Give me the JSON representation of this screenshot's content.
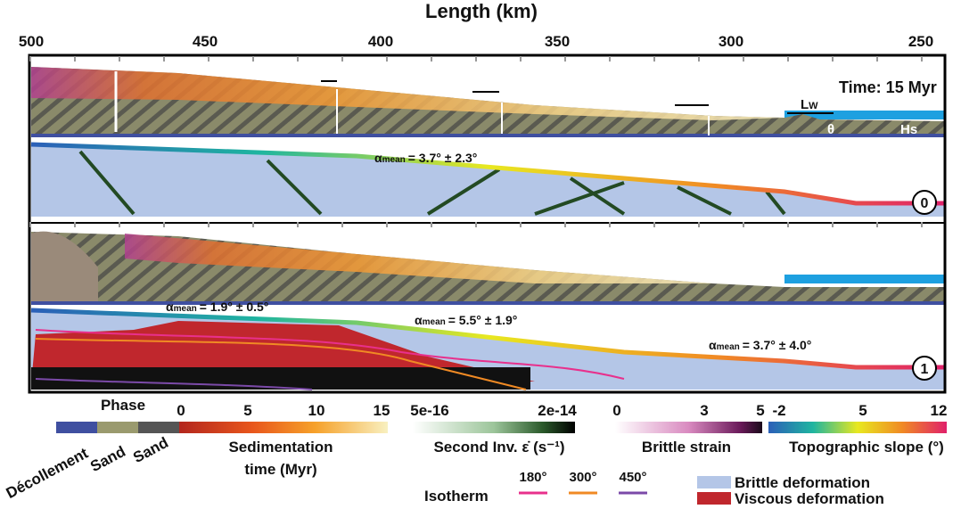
{
  "header": {
    "title": "Length (km)",
    "ticks": [
      500,
      450,
      400,
      350,
      300,
      250
    ]
  },
  "panel_0": {
    "time": "Time: 15 Myr",
    "wave_length": {
      "main": "L",
      "sub": "W"
    },
    "angle": "θ",
    "height": "Hs",
    "slope": {
      "symbol": "α",
      "subscript": "mean",
      "text": "= 3.7° ± 2.3°"
    },
    "label": "0"
  },
  "panel_1": {
    "slopes": [
      {
        "symbol": "α",
        "subscript": "mean",
        "text": "= 1.9° ± 0.5°"
      },
      {
        "symbol": "α",
        "subscript": "mean",
        "text": "= 5.5° ± 1.9°"
      },
      {
        "symbol": "α",
        "subscript": "mean",
        "text": "= 3.7° ± 4.0°"
      }
    ],
    "label": "1"
  },
  "legend": {
    "phase": {
      "title": "Phase",
      "items": [
        "Décollement",
        "Sand",
        "Sand"
      ]
    },
    "sedimentation": {
      "ticks": [
        0,
        5,
        10,
        15
      ],
      "title": "Sedimentation",
      "subtitle": "time (Myr)"
    },
    "strain_rate": {
      "ticks": [
        "5e-16",
        "2e-14"
      ],
      "title": "Second Inv. ε̇ (s⁻¹)"
    },
    "brittle_strain": {
      "ticks": [
        0,
        3,
        5
      ],
      "title": "Brittle strain"
    },
    "topographic_slope": {
      "ticks": [
        -2,
        5,
        12
      ],
      "title": "Topographic slope (°)"
    },
    "isotherm": {
      "title": "Isotherm",
      "items": [
        {
          "label": "180°",
          "color": "#e8308c"
        },
        {
          "label": "300°",
          "color": "#f08a24"
        },
        {
          "label": "450°",
          "color": "#7b4aa8"
        }
      ]
    },
    "deformation": [
      {
        "label": "Brittle deformation",
        "color": "#b4c6e7"
      },
      {
        "label": "Viscous deformation",
        "color": "#c0272d"
      }
    ]
  }
}
